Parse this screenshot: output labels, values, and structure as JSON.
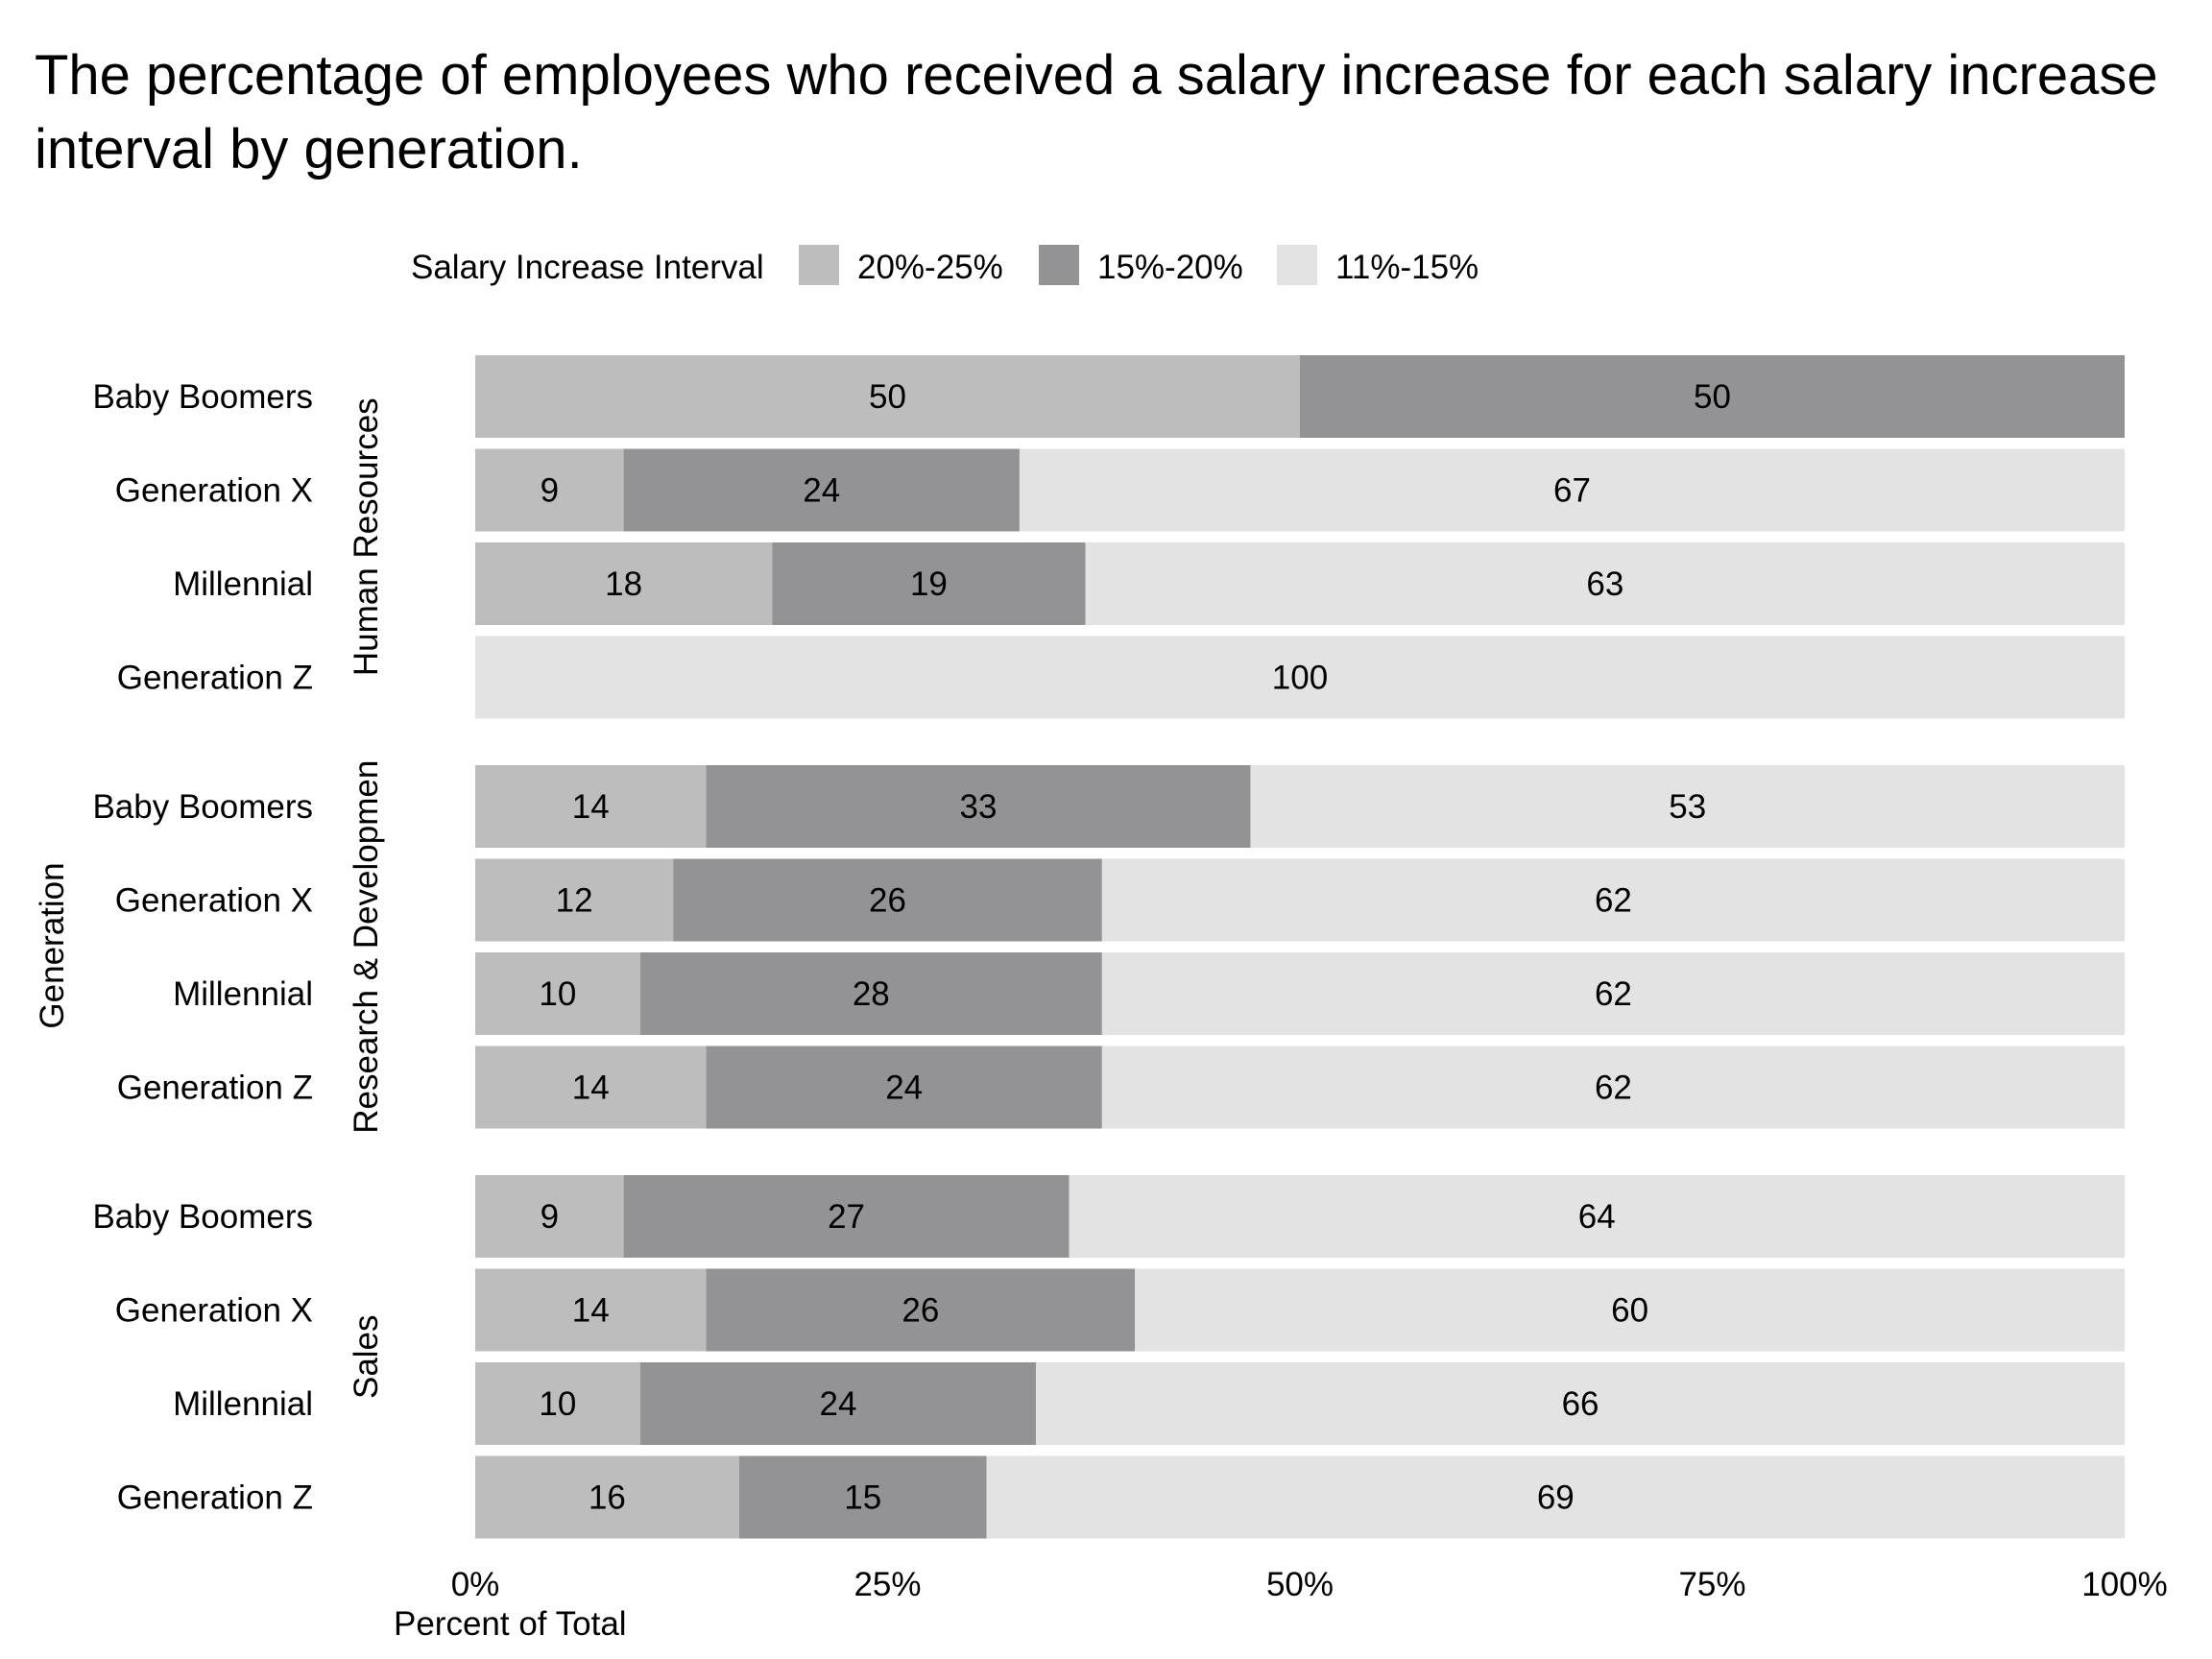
{
  "chart_data": {
    "type": "bar",
    "orientation": "horizontal",
    "stacked": "percent",
    "title": "The percentage of employees who received a salary increase for each salary increase interval by generation.",
    "xlabel": "Percent of Total",
    "ylabel": "Generation",
    "xlim": [
      0,
      100
    ],
    "x_ticks": [
      "0%",
      "25%",
      "50%",
      "75%",
      "100%"
    ],
    "x_tick_values": [
      0,
      25,
      50,
      75,
      100
    ],
    "legend": {
      "title": "Salary Increase Interval",
      "position": "top",
      "items": [
        "20%-25%",
        "15%-20%",
        "11%-15%"
      ]
    },
    "colors": {
      "20%-25%": "#bdbdbd",
      "15%-20%": "#939396",
      "11%-15%": "#e3e3e3"
    },
    "grid": false,
    "panels": [
      {
        "name": "Human Resources",
        "categories": [
          "Baby Boomers",
          "Generation X",
          "Millennial",
          "Generation Z"
        ],
        "series": [
          {
            "name": "20%-25%",
            "values": [
              50,
              9,
              18,
              0
            ]
          },
          {
            "name": "15%-20%",
            "values": [
              50,
              24,
              19,
              0
            ]
          },
          {
            "name": "11%-15%",
            "values": [
              0,
              67,
              63,
              100
            ]
          }
        ]
      },
      {
        "name": "Research & Developmen",
        "categories": [
          "Baby Boomers",
          "Generation X",
          "Millennial",
          "Generation Z"
        ],
        "series": [
          {
            "name": "20%-25%",
            "values": [
              14,
              12,
              10,
              14
            ]
          },
          {
            "name": "15%-20%",
            "values": [
              33,
              26,
              28,
              24
            ]
          },
          {
            "name": "11%-15%",
            "values": [
              53,
              62,
              62,
              62
            ]
          }
        ]
      },
      {
        "name": "Sales",
        "categories": [
          "Baby Boomers",
          "Generation X",
          "Millennial",
          "Generation Z"
        ],
        "series": [
          {
            "name": "20%-25%",
            "values": [
              9,
              14,
              10,
              16
            ]
          },
          {
            "name": "15%-20%",
            "values": [
              27,
              26,
              24,
              15
            ]
          },
          {
            "name": "11%-15%",
            "values": [
              64,
              60,
              66,
              69
            ]
          }
        ]
      }
    ]
  }
}
